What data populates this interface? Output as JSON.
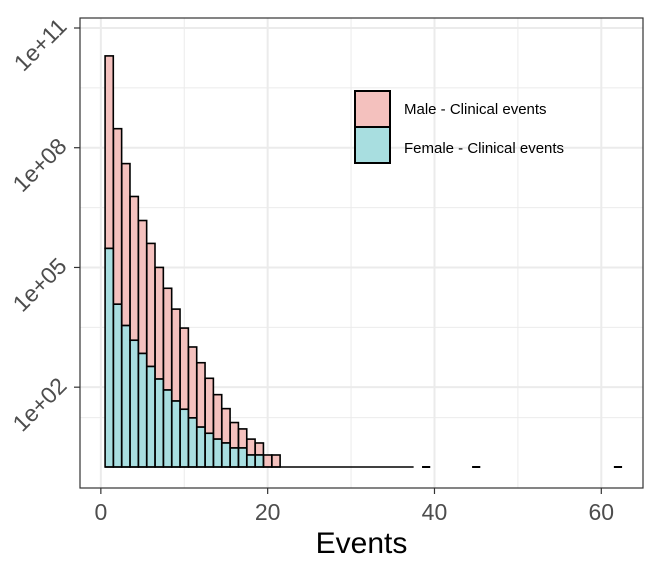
{
  "chart_data": {
    "type": "bar",
    "stacked": true,
    "xlabel": "Events",
    "ylabel": "",
    "y_scale": "log10",
    "xlim": [
      -2.5,
      65
    ],
    "ylim": [
      0.2,
      100000000000.0
    ],
    "grid": true,
    "legend_position": "top-right",
    "x_ticks": [
      0,
      20,
      40,
      60
    ],
    "x_tick_labels": [
      "0",
      "20",
      "40",
      "60"
    ],
    "y_ticks": [
      100,
      100000,
      100000000,
      100000000000
    ],
    "y_tick_labels": [
      "1e+02",
      "1e+05",
      "1e+08",
      "1e+11"
    ],
    "colors": {
      "male": "#F4C1BE",
      "female": "#A8DEE0",
      "outline": "#000000",
      "grid": "#ebebeb"
    },
    "x": [
      1,
      2,
      3,
      4,
      5,
      6,
      7,
      8,
      9,
      10,
      11,
      12,
      13,
      14,
      15,
      16,
      17,
      18,
      19,
      20,
      21,
      22,
      23,
      24,
      25,
      26,
      27,
      28,
      29,
      30,
      31,
      32,
      33,
      34,
      35,
      36,
      37,
      38,
      39,
      40,
      41,
      42,
      43,
      44,
      45,
      46,
      47,
      48,
      49,
      50,
      51,
      52,
      53,
      54,
      55,
      56,
      57,
      58,
      59,
      60,
      61,
      62
    ],
    "series": [
      {
        "name": "Male - Clinical events",
        "color": "#F4C1BE",
        "values": [
          20000000000.0,
          300000000.0,
          40000000.0,
          6000000.0,
          1500000.0,
          400000.0,
          100000.0,
          30000.0,
          9000,
          3000,
          1000,
          400,
          160,
          60,
          25,
          10,
          6,
          3,
          2,
          1,
          1,
          0,
          0,
          0,
          0,
          0,
          0,
          0,
          0,
          0,
          0,
          0,
          0,
          0,
          0,
          0,
          1,
          0,
          0,
          0,
          0,
          0,
          0,
          0,
          0,
          0,
          0,
          0,
          0,
          0,
          0,
          0,
          0,
          0,
          0,
          0,
          0,
          0,
          0,
          0,
          0,
          0
        ]
      },
      {
        "name": "Female - Clinical events",
        "color": "#A8DEE0",
        "values": [
          300000.0,
          12000.0,
          3500,
          1500,
          700,
          330,
          160,
          85,
          45,
          28,
          17,
          10,
          7,
          5,
          4,
          3,
          3,
          2,
          2,
          1,
          1,
          1,
          1,
          1,
          1,
          0,
          1,
          1,
          0,
          1,
          1,
          1,
          0,
          1,
          1,
          1,
          0,
          0,
          0,
          0,
          0,
          0,
          0,
          0,
          0,
          0,
          0,
          0,
          0,
          0,
          0,
          0,
          0,
          0,
          0,
          0,
          0,
          0,
          0,
          0,
          0,
          0
        ]
      }
    ],
    "single_event_ticks": [
      39,
      45,
      62
    ]
  }
}
